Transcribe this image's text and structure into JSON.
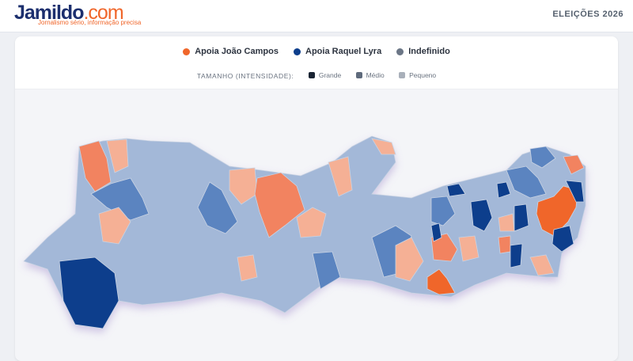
{
  "header": {
    "logo": "Jamildo",
    "logo_suffix": ".com",
    "tagline": "Jornalismo sério, informação precisa",
    "section": "ELEIÇÕES 2026"
  },
  "legend": {
    "items": [
      "Apoia João Campos",
      "Apoia Raquel Lyra",
      "Indefinido"
    ],
    "size_title": "TAMANHO (INTENSIDADE):",
    "sizes": [
      "Grande",
      "Médio",
      "Pequeno"
    ]
  }
}
